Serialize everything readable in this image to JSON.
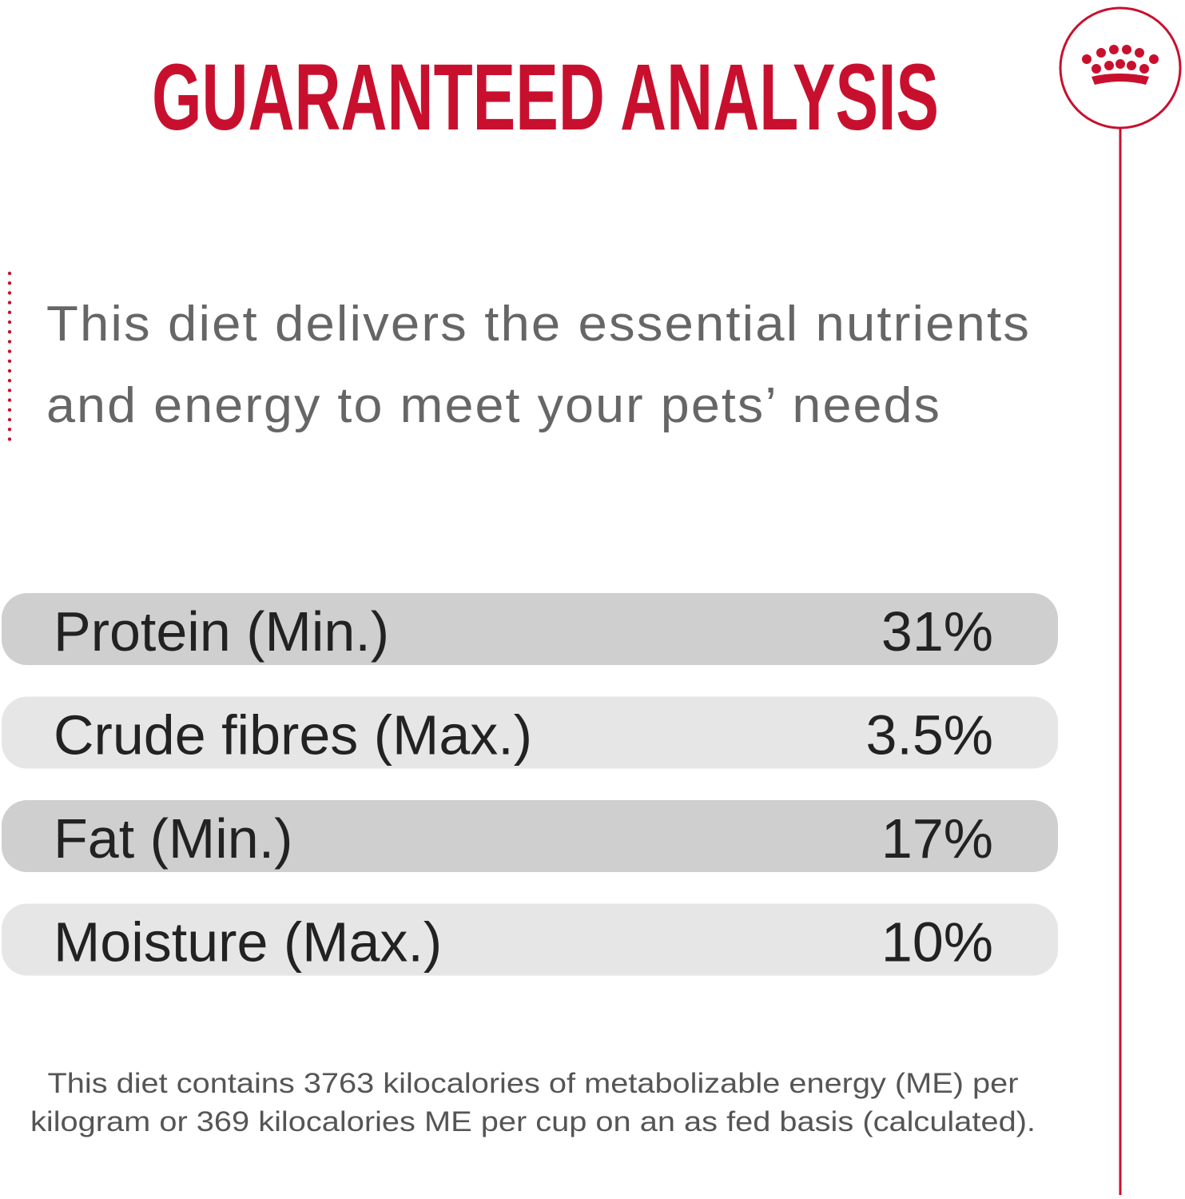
{
  "header": {
    "title": "GUARANTEED ANALYSIS"
  },
  "intro": {
    "lines": [
      "This diet delivers the essential nutrients",
      "and energy to meet your pets’ needs"
    ]
  },
  "table": {
    "rows": [
      [
        "Protein (Min.)",
        "31%"
      ],
      [
        "Crude fibres (Max.)",
        "3.5%"
      ],
      [
        "Fat (Min.)",
        "17%"
      ],
      [
        "Moisture (Max.)",
        "10%"
      ]
    ]
  },
  "footnote": {
    "lines": [
      "This diet contains 3763 kilocalories of metabolizable energy (ME) per",
      "kilogram or 369 kilocalories ME per cup on an as fed basis (calculated)."
    ]
  }
}
